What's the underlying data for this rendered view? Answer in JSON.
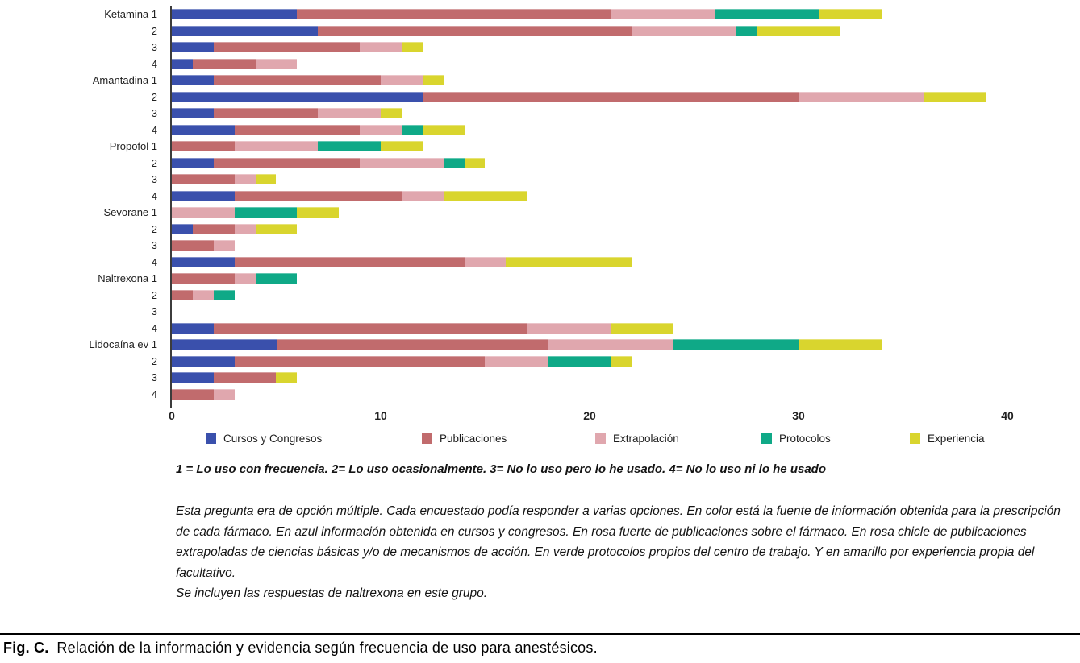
{
  "chart_data": {
    "type": "bar",
    "orientation": "horizontal",
    "stacked": true,
    "title": "",
    "xlabel": "",
    "ylabel": "",
    "xlim": [
      0,
      40
    ],
    "x_ticks": [
      "0",
      "10",
      "20",
      "30",
      "40"
    ],
    "grid": false,
    "legend_position": "bottom",
    "series": [
      {
        "name": "Cursos y Congresos",
        "color": "#3a50ac"
      },
      {
        "name": "Publicaciones",
        "color": "#c16b6d"
      },
      {
        "name": "Extrapolación",
        "color": "#e0a7ae"
      },
      {
        "name": "Protocolos",
        "color": "#0fa987"
      },
      {
        "name": "Experiencia",
        "color": "#d9d52e"
      }
    ],
    "rows": [
      {
        "label": "Ketamina 1",
        "values": [
          6,
          15,
          5,
          5,
          3
        ]
      },
      {
        "label": "2",
        "values": [
          7,
          15,
          5,
          1,
          4
        ]
      },
      {
        "label": "3",
        "values": [
          2,
          7,
          2,
          0,
          1
        ]
      },
      {
        "label": "4",
        "values": [
          1,
          3,
          2,
          0,
          0
        ]
      },
      {
        "label": "Amantadina 1",
        "values": [
          2,
          8,
          2,
          0,
          1
        ]
      },
      {
        "label": "2",
        "values": [
          12,
          18,
          6,
          0,
          3
        ]
      },
      {
        "label": "3",
        "values": [
          2,
          5,
          3,
          0,
          1
        ]
      },
      {
        "label": "4",
        "values": [
          3,
          6,
          2,
          1,
          2
        ]
      },
      {
        "label": "Propofol 1",
        "values": [
          0,
          3,
          4,
          3,
          2
        ]
      },
      {
        "label": "2",
        "values": [
          2,
          7,
          4,
          1,
          1
        ]
      },
      {
        "label": "3",
        "values": [
          0,
          3,
          1,
          0,
          1
        ]
      },
      {
        "label": "4",
        "values": [
          3,
          8,
          2,
          0,
          4
        ]
      },
      {
        "label": "Sevorane 1",
        "values": [
          0,
          0,
          3,
          3,
          2
        ]
      },
      {
        "label": "2",
        "values": [
          1,
          2,
          1,
          0,
          2
        ]
      },
      {
        "label": "3",
        "values": [
          0,
          2,
          1,
          0,
          0
        ]
      },
      {
        "label": "4",
        "values": [
          3,
          11,
          2,
          0,
          6
        ]
      },
      {
        "label": "Naltrexona 1",
        "values": [
          0,
          3,
          1,
          2,
          0
        ]
      },
      {
        "label": "2",
        "values": [
          0,
          1,
          1,
          1,
          0
        ]
      },
      {
        "label": "3",
        "values": [
          0,
          0,
          0,
          0,
          0
        ]
      },
      {
        "label": "4",
        "values": [
          2,
          15,
          4,
          0,
          3
        ]
      },
      {
        "label": "Lidocaína ev 1",
        "values": [
          5,
          13,
          6,
          6,
          4
        ]
      },
      {
        "label": "2",
        "values": [
          3,
          12,
          3,
          3,
          1
        ]
      },
      {
        "label": "3",
        "values": [
          2,
          3,
          0,
          0,
          1
        ]
      },
      {
        "label": "4",
        "values": [
          0,
          2,
          1,
          0,
          0
        ]
      }
    ],
    "legend_x": [
      255,
      523,
      738,
      944,
      1128
    ]
  },
  "notes": {
    "scale": "1 = Lo uso con frecuencia. 2= Lo uso ocasionalmente. 3= No lo uso pero lo he usado. 4= No lo uso ni lo he usado",
    "paragraph": "Esta pregunta era de opción múltiple. Cada encuestado podía responder a varias opciones. En color está la fuente de información obtenida para la prescripción de cada fármaco. En azul información obtenida en cursos y congresos. En rosa fuerte de publicaciones sobre el fármaco. En rosa chicle de publicaciones extrapoladas de ciencias básicas y/o de mecanismos de acción. En verde protocolos propios del centro de trabajo. Y en amarillo por experiencia propia del facultativo.",
    "last_line": "Se incluyen las respuestas de naltrexona en este grupo."
  },
  "caption": {
    "label": "Fig. C.",
    "text": "Relación de la información y evidencia según frecuencia de uso para anestésicos."
  }
}
